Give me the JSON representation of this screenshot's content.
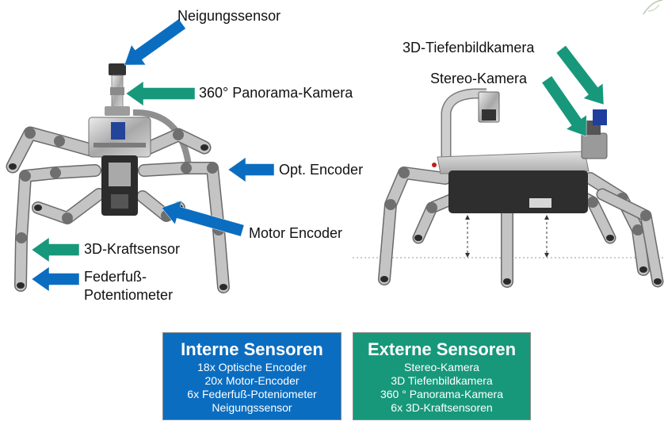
{
  "figure_left": {
    "labels": {
      "tilt_sensor": "Neigungssensor",
      "panorama_camera": "360° Panorama-Kamera",
      "opt_encoder": "Opt. Encoder",
      "motor_encoder": "Motor Encoder",
      "force_sensor": "3D-Kraftsensor",
      "foot_potentiometer_line1": "Federfuß-",
      "foot_potentiometer_line2": "Potentiometer"
    }
  },
  "figure_right": {
    "labels": {
      "depth_camera": "3D-Tiefenbildkamera",
      "stereo_camera": "Stereo-Kamera"
    }
  },
  "internal_sensors": {
    "title": "Interne Sensoren",
    "items": [
      "18x Optische Encoder",
      "20x Motor-Encoder",
      "6x Federfuß-Poteniometer",
      "Neigungssensor"
    ]
  },
  "external_sensors": {
    "title": "Externe Sensoren",
    "items": [
      "Stereo-Kamera",
      "3D Tiefenbildkamera",
      "360 ° Panorama-Kamera",
      "6x 3D-Kraftsensoren"
    ]
  },
  "colors": {
    "internal_sensors": "#0b6dc0",
    "external_sensors": "#17987b",
    "label_text": "#111111"
  }
}
